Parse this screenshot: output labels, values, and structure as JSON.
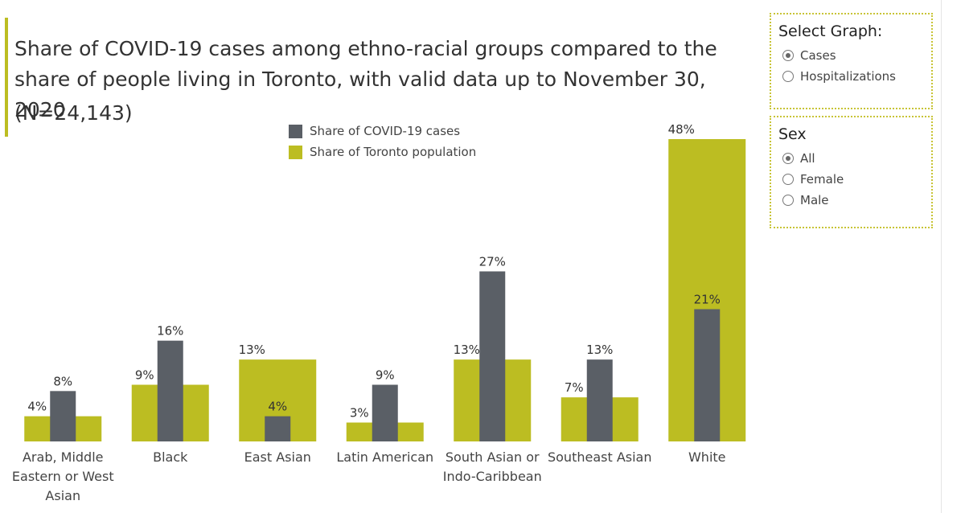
{
  "title": "Share of COVID-19 cases among ethno-racial groups compared to the share of people living in Toronto, with valid data up to November 30, 2020",
  "subtitle": "(N=24,143)",
  "colors": {
    "accent": "#bcbd22",
    "cases": "#5a5f66",
    "population": "#bcbd22",
    "panel_border": "#c8c436"
  },
  "filters": {
    "select_graph": {
      "title": "Select Graph:",
      "options": [
        {
          "label": "Cases",
          "selected": true
        },
        {
          "label": "Hospitalizations",
          "selected": false
        }
      ]
    },
    "sex": {
      "title": "Sex",
      "options": [
        {
          "label": "All",
          "selected": true
        },
        {
          "label": "Female",
          "selected": false
        },
        {
          "label": "Male",
          "selected": false
        }
      ]
    }
  },
  "chart_data": {
    "type": "bar",
    "categories": [
      [
        "Arab, Middle",
        "Eastern or West",
        "Asian"
      ],
      [
        "Black"
      ],
      [
        "East Asian"
      ],
      [
        "Latin American"
      ],
      [
        "South Asian or",
        "Indo-Caribbean"
      ],
      [
        "Southeast Asian"
      ],
      [
        "White"
      ]
    ],
    "series": [
      {
        "name": "Share of COVID-19 cases",
        "values": [
          8,
          16,
          4,
          9,
          27,
          13,
          21
        ],
        "labels": [
          "8%",
          "16%",
          "4%",
          "9%",
          "27%",
          "13%",
          "21%"
        ]
      },
      {
        "name": "Share of Toronto population",
        "values": [
          4,
          9,
          13,
          3,
          13,
          7,
          48
        ],
        "labels": [
          "4%",
          "9%",
          "13%",
          "3%",
          "13%",
          "7%",
          "48%"
        ]
      }
    ],
    "ylim": [
      0,
      48
    ],
    "legend_position": "top-center",
    "grid": false,
    "xlabel": "",
    "ylabel": ""
  }
}
